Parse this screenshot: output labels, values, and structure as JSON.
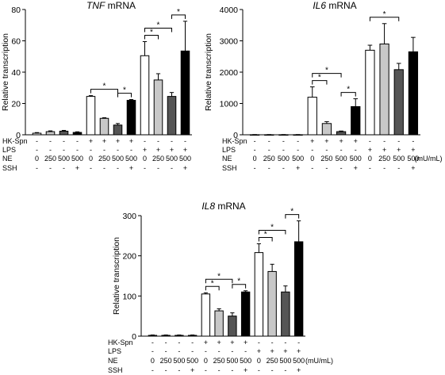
{
  "row_labels": [
    "HK-Spn",
    "LPS",
    "NE",
    "SSH"
  ],
  "ne_values": [
    "0",
    "250",
    "500",
    "500",
    "0",
    "250",
    "500",
    "500",
    "0",
    "250",
    "500",
    "500"
  ],
  "unit_label": "(mU/mL)",
  "signs": {
    "hk": [
      "-",
      "-",
      "-",
      "-",
      "+",
      "+",
      "+",
      "+",
      "-",
      "-",
      "-",
      "-"
    ],
    "lps": [
      "-",
      "-",
      "-",
      "-",
      "-",
      "-",
      "-",
      "-",
      "+",
      "+",
      "+",
      "+"
    ],
    "ssh": [
      "-",
      "-",
      "-",
      "+",
      "-",
      "-",
      "-",
      "+",
      "-",
      "-",
      "-",
      "+"
    ]
  },
  "colors": {
    "0": "#ffffff",
    "250": "#c8c8c8",
    "500": "#555555",
    "SSH": "#000000"
  },
  "star": "*",
  "chart_data": [
    {
      "type": "bar",
      "title_italic": "TNF",
      "title_rest": " mRNA",
      "ylabel": "Relative transcription",
      "ylim": [
        0,
        80
      ],
      "yticks": [
        "0",
        "20",
        "40",
        "60",
        "80"
      ],
      "ytick_values": [
        0,
        20,
        40,
        60,
        80
      ],
      "values": [
        1.0,
        2.0,
        2.3,
        1.5,
        24.5,
        10.5,
        6.2,
        22.0,
        50.5,
        35.0,
        24.5,
        53.5
      ],
      "errors": [
        0.4,
        0.5,
        0.5,
        0.4,
        0.5,
        0.4,
        1.0,
        0.5,
        9.0,
        4.0,
        2.5,
        19.0
      ],
      "significance": [
        [
          4,
          6
        ],
        [
          6,
          7
        ],
        [
          8,
          9
        ],
        [
          8,
          10
        ],
        [
          10,
          11
        ]
      ]
    },
    {
      "type": "bar",
      "title_italic": "IL6",
      "title_rest": " mRNA",
      "ylabel": "Relative transcription",
      "ylim": [
        0,
        4000
      ],
      "yticks": [
        "0",
        "1000",
        "2000",
        "3000",
        "4000"
      ],
      "ytick_values": [
        0,
        1000,
        2000,
        3000,
        4000
      ],
      "values": [
        2,
        2,
        2,
        2,
        1200,
        360,
        100,
        900,
        2700,
        2900,
        2080,
        2650
      ],
      "errors": [
        5,
        5,
        5,
        5,
        330,
        60,
        20,
        250,
        160,
        650,
        200,
        460
      ],
      "significance": [
        [
          4,
          5
        ],
        [
          4,
          6
        ],
        [
          6,
          7
        ],
        [
          8,
          10
        ]
      ]
    },
    {
      "type": "bar",
      "title_italic": "IL8",
      "title_rest": " mRNA",
      "ylabel": "Relative transcription",
      "ylim": [
        0,
        300
      ],
      "yticks": [
        "0",
        "100",
        "200",
        "300"
      ],
      "ytick_values": [
        0,
        100,
        200,
        300
      ],
      "values": [
        2,
        2,
        2,
        2,
        105,
        63,
        50,
        110,
        208,
        161,
        110,
        235
      ],
      "errors": [
        1,
        1,
        1,
        1,
        3,
        5,
        8,
        3,
        22,
        18,
        15,
        52
      ],
      "significance": [
        [
          4,
          5
        ],
        [
          4,
          6
        ],
        [
          6,
          7
        ],
        [
          8,
          9
        ],
        [
          8,
          10
        ],
        [
          10,
          11
        ]
      ]
    }
  ]
}
